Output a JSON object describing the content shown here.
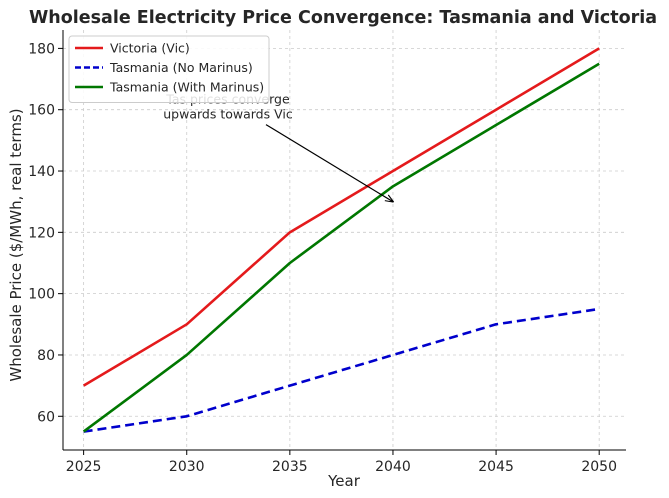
{
  "chart_data": {
    "type": "line",
    "title": "Wholesale Electricity Price Convergence: Tasmania and Victoria",
    "xlabel": "Year",
    "ylabel": "Wholesale Price ($/MWh, real terms)",
    "x": [
      2025,
      2030,
      2035,
      2040,
      2045,
      2050
    ],
    "xlim": [
      2024,
      2051.3
    ],
    "ylim": [
      49,
      186
    ],
    "xticks": [
      "2025",
      "2030",
      "2035",
      "2040",
      "2045",
      "2050"
    ],
    "yticks": [
      "60",
      "80",
      "100",
      "120",
      "140",
      "160",
      "180"
    ],
    "grid": true,
    "legend_position": "top-left",
    "series": [
      {
        "name": "Victoria (Vic)",
        "values": [
          70,
          90,
          120,
          140,
          160,
          180
        ],
        "color": "#e41a1c",
        "style": "solid"
      },
      {
        "name": "Tasmania (No Marinus)",
        "values": [
          55,
          60,
          70,
          80,
          90,
          95
        ],
        "color": "#0000cc",
        "style": "dashed"
      },
      {
        "name": "Tasmania (With Marinus)",
        "values": [
          55,
          80,
          110,
          135,
          155,
          175
        ],
        "color": "#007700",
        "style": "solid"
      }
    ],
    "annotation": {
      "lines": [
        "Tas prices converge",
        "upwards towards Vic"
      ],
      "text_at": [
        2032,
        162
      ],
      "arrow_to": [
        2040,
        130
      ]
    }
  }
}
